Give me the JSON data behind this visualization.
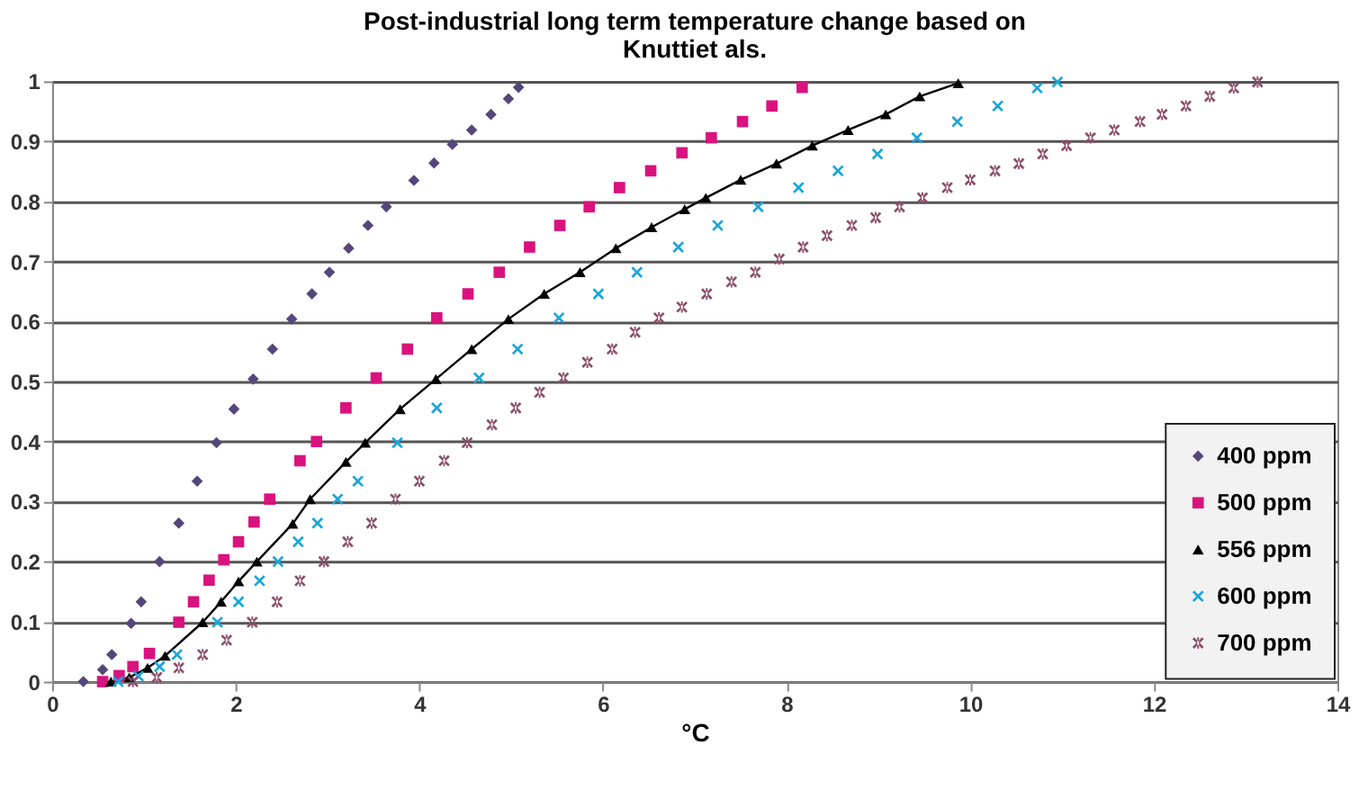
{
  "chart_data": {
    "type": "scatter",
    "title": "Post-industrial long term temperature change based on Knuttiet als.",
    "xlabel": "°C",
    "xlim": [
      0,
      14
    ],
    "xticks": [
      0,
      2,
      4,
      6,
      8,
      10,
      12,
      14
    ],
    "ylim": [
      0,
      1
    ],
    "yticks": [
      0,
      0.1,
      0.2,
      0.3,
      0.4,
      0.5,
      0.6,
      0.7,
      0.8,
      0.9,
      1
    ],
    "grid": "y",
    "legend": "bottom right",
    "series": [
      {
        "name": "400 ppm",
        "marker": "diamond",
        "color": "#55467a",
        "x": [
          0.34,
          0.55,
          0.65,
          0.86,
          0.97,
          1.17,
          1.38,
          1.58,
          1.79,
          1.98,
          2.19,
          2.4,
          2.61,
          2.83,
          3.02,
          3.23,
          3.44,
          3.64,
          3.94,
          4.16,
          4.36,
          4.57,
          4.78,
          4.97,
          5.08
        ],
        "values": [
          0.0,
          0.02,
          0.045,
          0.097,
          0.133,
          0.2,
          0.264,
          0.334,
          0.398,
          0.454,
          0.504,
          0.554,
          0.604,
          0.646,
          0.682,
          0.722,
          0.76,
          0.791,
          0.835,
          0.864,
          0.895,
          0.919,
          0.945,
          0.971,
          0.99
        ]
      },
      {
        "name": "500 ppm",
        "marker": "square",
        "color": "#d9127e",
        "x": [
          0.55,
          0.73,
          0.88,
          1.06,
          1.38,
          1.54,
          1.71,
          1.87,
          2.03,
          2.2,
          2.37,
          2.7,
          2.88,
          3.2,
          3.53,
          3.87,
          4.19,
          4.53,
          4.87,
          5.2,
          5.53,
          5.85,
          6.18,
          6.52,
          6.86,
          7.18,
          7.52,
          7.84,
          8.17
        ],
        "values": [
          0.0,
          0.01,
          0.025,
          0.047,
          0.099,
          0.133,
          0.169,
          0.203,
          0.233,
          0.266,
          0.304,
          0.368,
          0.4,
          0.456,
          0.506,
          0.554,
          0.606,
          0.646,
          0.682,
          0.724,
          0.76,
          0.791,
          0.823,
          0.851,
          0.881,
          0.906,
          0.933,
          0.959,
          0.99
        ]
      },
      {
        "name": "556 ppm",
        "type": "line",
        "marker": "triangle",
        "line_style": "solid",
        "color": "#000000",
        "x": [
          0.64,
          0.84,
          1.04,
          1.23,
          1.64,
          1.84,
          2.03,
          2.23,
          2.62,
          2.81,
          3.2,
          3.41,
          3.79,
          4.18,
          4.57,
          4.97,
          5.36,
          5.75,
          6.14,
          6.53,
          6.89,
          7.12,
          7.5,
          7.89,
          8.28,
          8.67,
          9.08,
          9.45,
          9.87
        ],
        "values": [
          0.0,
          0.007,
          0.023,
          0.043,
          0.099,
          0.133,
          0.167,
          0.2,
          0.263,
          0.304,
          0.366,
          0.398,
          0.454,
          0.504,
          0.554,
          0.604,
          0.646,
          0.682,
          0.722,
          0.757,
          0.787,
          0.806,
          0.836,
          0.863,
          0.893,
          0.919,
          0.945,
          0.975,
          0.997
        ]
      },
      {
        "name": "600 ppm",
        "marker": "cross",
        "color": "#1aa6d9",
        "x": [
          0.72,
          0.94,
          1.17,
          1.36,
          1.8,
          2.03,
          2.26,
          2.46,
          2.68,
          2.89,
          3.11,
          3.33,
          3.76,
          4.19,
          4.65,
          5.07,
          5.52,
          5.95,
          6.37,
          6.82,
          7.25,
          7.69,
          8.13,
          8.56,
          8.99,
          9.42,
          9.86,
          10.3,
          10.73,
          10.95
        ],
        "values": [
          0.0,
          0.009,
          0.025,
          0.045,
          0.099,
          0.133,
          0.168,
          0.2,
          0.233,
          0.264,
          0.304,
          0.334,
          0.398,
          0.456,
          0.506,
          0.554,
          0.606,
          0.646,
          0.682,
          0.724,
          0.76,
          0.791,
          0.823,
          0.851,
          0.879,
          0.906,
          0.933,
          0.959,
          0.989,
          0.999
        ]
      },
      {
        "name": "700 ppm",
        "marker": "star",
        "color": "#8a4f6a",
        "x": [
          0.88,
          1.14,
          1.38,
          1.64,
          1.9,
          2.18,
          2.45,
          2.7,
          2.96,
          3.22,
          3.48,
          3.74,
          4.0,
          4.27,
          4.52,
          4.79,
          5.05,
          5.31,
          5.57,
          5.83,
          6.1,
          6.35,
          6.61,
          6.86,
          7.13,
          7.4,
          7.66,
          7.92,
          8.18,
          8.44,
          8.71,
          8.97,
          9.23,
          9.48,
          9.75,
          10.0,
          10.27,
          10.53,
          10.79,
          11.05,
          11.31,
          11.57,
          11.85,
          12.09,
          12.35,
          12.61,
          12.87,
          13.13
        ],
        "values": [
          0.0,
          0.007,
          0.023,
          0.045,
          0.069,
          0.099,
          0.133,
          0.168,
          0.2,
          0.233,
          0.264,
          0.304,
          0.334,
          0.368,
          0.398,
          0.428,
          0.456,
          0.482,
          0.506,
          0.532,
          0.554,
          0.582,
          0.606,
          0.624,
          0.646,
          0.666,
          0.682,
          0.704,
          0.724,
          0.743,
          0.76,
          0.773,
          0.791,
          0.806,
          0.823,
          0.836,
          0.851,
          0.863,
          0.879,
          0.893,
          0.906,
          0.919,
          0.933,
          0.945,
          0.959,
          0.975,
          0.989,
          0.999
        ]
      }
    ]
  }
}
